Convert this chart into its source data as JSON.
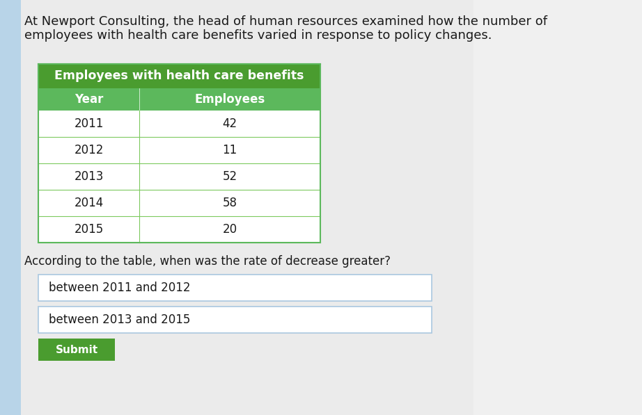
{
  "title_line1": "At Newport Consulting, the head of human resources examined how the number of",
  "title_line2": "employees with health care benefits varied in response to policy changes.",
  "table_title": "Employees with health care benefits",
  "col1_header": "Year",
  "col2_header": "Employees",
  "years": [
    "2011",
    "2012",
    "2013",
    "2014",
    "2015"
  ],
  "employees": [
    "42",
    "11",
    "52",
    "58",
    "20"
  ],
  "question": "According to the table, when was the rate of decrease greater?",
  "option1": "between 2011 and 2012",
  "option2": "between 2013 and 2015",
  "submit_label": "Submit",
  "header_green": "#4a9c2f",
  "subheader_green": "#5cb85c",
  "table_border": "#7dc95e",
  "bg_color": "#e8eef2",
  "bg_left_color": "#b8d4e8",
  "white": "#ffffff",
  "light_gray_row": "#f5f5f5",
  "text_dark": "#1a1a1a",
  "option_border": "#aac8e0",
  "submit_green": "#4a9c2f",
  "title_fontsize": 13.0,
  "table_title_fontsize": 12.5,
  "header_fontsize": 12.0,
  "data_fontsize": 12.0,
  "question_fontsize": 12.0,
  "option_fontsize": 12.0
}
